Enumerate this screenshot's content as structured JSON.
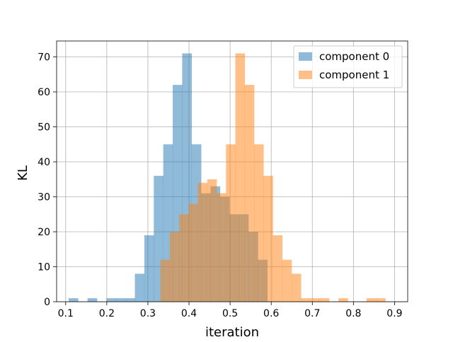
{
  "chart_data": {
    "type": "histogram",
    "title": "",
    "xlabel": "iteration",
    "ylabel": "KL",
    "xlim": [
      0.078,
      0.932
    ],
    "ylim": [
      0,
      74.55
    ],
    "xticks": [
      0.1,
      0.2,
      0.3,
      0.4,
      0.5,
      0.6,
      0.7,
      0.8,
      0.9
    ],
    "xtick_labels": [
      "0.1",
      "0.2",
      "0.3",
      "0.4",
      "0.5",
      "0.6",
      "0.7",
      "0.8",
      "0.9"
    ],
    "yticks": [
      0,
      10,
      20,
      30,
      40,
      50,
      60,
      70
    ],
    "ytick_labels": [
      "0",
      "10",
      "20",
      "30",
      "40",
      "50",
      "60",
      "70"
    ],
    "grid": true,
    "legend_position": "top-right",
    "series": [
      {
        "name": "component 0",
        "color": "#1f77b4",
        "alpha": 0.5,
        "bin_edges": [
          0.1072,
          0.1302,
          0.1532,
          0.1762,
          0.1993,
          0.2223,
          0.2453,
          0.2683,
          0.2913,
          0.3144,
          0.3374,
          0.3604,
          0.3834,
          0.4064,
          0.4295,
          0.4525,
          0.4755,
          0.4985,
          0.5215,
          0.5446,
          0.5676,
          0.5906,
          0.6136,
          0.6366,
          0.6597,
          0.6827
        ],
        "counts": [
          1,
          0,
          1,
          0,
          1,
          1,
          1,
          8,
          19,
          36,
          45,
          62,
          71,
          45,
          31,
          33,
          30,
          25,
          25,
          20,
          12,
          0,
          0,
          0,
          0
        ]
      },
      {
        "name": "component 1",
        "color": "#ff7f0e",
        "alpha": 0.5,
        "bin_edges": [
          0.3304,
          0.3532,
          0.376,
          0.3988,
          0.4216,
          0.4444,
          0.4672,
          0.49,
          0.5128,
          0.5356,
          0.5584,
          0.5812,
          0.604,
          0.6268,
          0.6496,
          0.6724,
          0.6952,
          0.718,
          0.7408,
          0.7636,
          0.7864,
          0.8092,
          0.832,
          0.8548,
          0.8776,
          0.9004
        ],
        "counts": [
          12,
          20,
          25,
          28,
          34,
          35,
          31,
          45,
          71,
          62,
          45,
          36,
          19,
          12,
          8,
          1,
          1,
          1,
          0,
          1,
          0,
          0,
          1,
          1,
          0
        ]
      }
    ]
  }
}
